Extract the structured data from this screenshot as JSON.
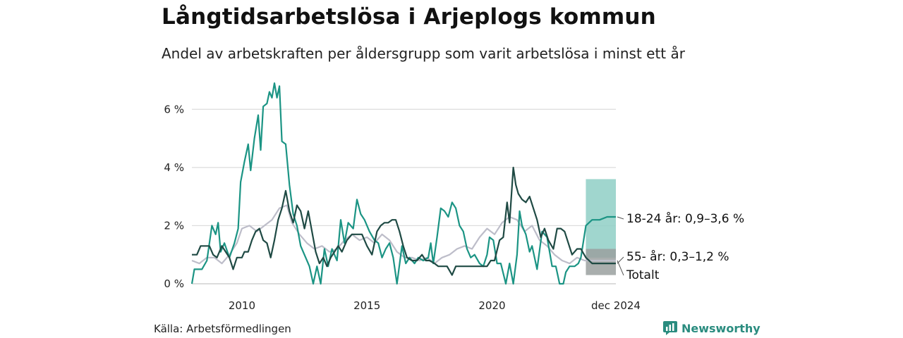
{
  "title": "Långtidsarbetslösa i Arjeplogs kommun",
  "subtitle": "Andel av arbetskraften per åldersgrupp som varit arbetslösa i minst ett år",
  "source": "Källa: Arbetsförmedlingen",
  "brand": "Newsworthy",
  "colors": {
    "young": "#1b9484",
    "old": "#1f4a44",
    "total": "#bdbdc9",
    "young_band": "#8fcfc6",
    "old_band": "#9aa09f",
    "grid": "#dcdcdc"
  },
  "chart_data": {
    "type": "line",
    "xlim": [
      2008.0,
      2024.95
    ],
    "ylim": [
      0,
      7
    ],
    "y_ticks": [
      {
        "value": 0,
        "label": "0 %"
      },
      {
        "value": 2,
        "label": "2 %"
      },
      {
        "value": 4,
        "label": "4 %"
      },
      {
        "value": 6,
        "label": "6 %"
      }
    ],
    "x_ticks": [
      {
        "value": 2010,
        "label": "2010"
      },
      {
        "value": 2015,
        "label": "2015"
      },
      {
        "value": 2020,
        "label": "2020"
      },
      {
        "value": 2024.95,
        "label": "dec 2024"
      }
    ],
    "series": [
      {
        "name": "Totalt",
        "key": "total",
        "label": "Totalt",
        "points": [
          [
            2008.0,
            0.8
          ],
          [
            2008.3,
            0.7
          ],
          [
            2008.6,
            0.9
          ],
          [
            2008.9,
            0.9
          ],
          [
            2009.2,
            0.7
          ],
          [
            2009.5,
            1.0
          ],
          [
            2009.8,
            1.4
          ],
          [
            2010.0,
            1.9
          ],
          [
            2010.3,
            2.0
          ],
          [
            2010.6,
            1.8
          ],
          [
            2010.9,
            2.0
          ],
          [
            2011.2,
            2.2
          ],
          [
            2011.5,
            2.6
          ],
          [
            2011.8,
            2.7
          ],
          [
            2012.0,
            2.1
          ],
          [
            2012.3,
            1.7
          ],
          [
            2012.6,
            1.4
          ],
          [
            2012.9,
            1.2
          ],
          [
            2013.2,
            1.3
          ],
          [
            2013.5,
            1.1
          ],
          [
            2013.8,
            1.2
          ],
          [
            2014.1,
            1.5
          ],
          [
            2014.4,
            1.7
          ],
          [
            2014.7,
            1.5
          ],
          [
            2015.0,
            1.6
          ],
          [
            2015.3,
            1.4
          ],
          [
            2015.6,
            1.7
          ],
          [
            2015.9,
            1.5
          ],
          [
            2016.2,
            1.1
          ],
          [
            2016.5,
            0.9
          ],
          [
            2016.8,
            0.9
          ],
          [
            2017.1,
            0.8
          ],
          [
            2017.4,
            0.9
          ],
          [
            2017.7,
            0.7
          ],
          [
            2018.0,
            0.9
          ],
          [
            2018.3,
            1.0
          ],
          [
            2018.6,
            1.2
          ],
          [
            2018.9,
            1.3
          ],
          [
            2019.2,
            1.2
          ],
          [
            2019.5,
            1.6
          ],
          [
            2019.8,
            1.9
          ],
          [
            2020.1,
            1.7
          ],
          [
            2020.4,
            2.1
          ],
          [
            2020.7,
            2.3
          ],
          [
            2021.0,
            2.2
          ],
          [
            2021.3,
            1.8
          ],
          [
            2021.6,
            2.0
          ],
          [
            2021.9,
            1.5
          ],
          [
            2022.2,
            1.3
          ],
          [
            2022.5,
            1.0
          ],
          [
            2022.8,
            0.8
          ],
          [
            2023.1,
            0.7
          ],
          [
            2023.4,
            0.9
          ],
          [
            2023.7,
            0.8
          ],
          [
            2024.0,
            0.8
          ],
          [
            2024.3,
            0.8
          ],
          [
            2024.6,
            0.8
          ],
          [
            2024.95,
            0.8
          ]
        ]
      },
      {
        "name": "18-24 år",
        "key": "young",
        "label": "18-24 år: 0,9–3,6 %",
        "band": [
          0.9,
          3.6
        ],
        "band_start": 2023.75,
        "points": [
          [
            2008.0,
            0.0
          ],
          [
            2008.1,
            0.5
          ],
          [
            2008.4,
            0.5
          ],
          [
            2008.6,
            0.8
          ],
          [
            2008.8,
            2.0
          ],
          [
            2008.95,
            1.7
          ],
          [
            2009.05,
            2.1
          ],
          [
            2009.15,
            1.1
          ],
          [
            2009.3,
            1.4
          ],
          [
            2009.5,
            0.9
          ],
          [
            2009.7,
            1.4
          ],
          [
            2009.85,
            1.9
          ],
          [
            2009.95,
            3.5
          ],
          [
            2010.1,
            4.2
          ],
          [
            2010.25,
            4.8
          ],
          [
            2010.35,
            3.9
          ],
          [
            2010.5,
            5.0
          ],
          [
            2010.65,
            5.8
          ],
          [
            2010.75,
            4.6
          ],
          [
            2010.85,
            6.1
          ],
          [
            2011.0,
            6.2
          ],
          [
            2011.1,
            6.6
          ],
          [
            2011.2,
            6.4
          ],
          [
            2011.3,
            6.9
          ],
          [
            2011.4,
            6.4
          ],
          [
            2011.5,
            6.8
          ],
          [
            2011.6,
            4.9
          ],
          [
            2011.75,
            4.8
          ],
          [
            2011.9,
            3.4
          ],
          [
            2012.05,
            2.4
          ],
          [
            2012.2,
            2.0
          ],
          [
            2012.35,
            1.3
          ],
          [
            2012.55,
            0.9
          ],
          [
            2012.7,
            0.6
          ],
          [
            2012.85,
            0.0
          ],
          [
            2013.0,
            0.6
          ],
          [
            2013.15,
            0.0
          ],
          [
            2013.3,
            1.2
          ],
          [
            2013.45,
            0.6
          ],
          [
            2013.6,
            1.2
          ],
          [
            2013.8,
            0.8
          ],
          [
            2013.95,
            2.2
          ],
          [
            2014.1,
            1.4
          ],
          [
            2014.25,
            2.1
          ],
          [
            2014.45,
            1.9
          ],
          [
            2014.6,
            2.9
          ],
          [
            2014.75,
            2.4
          ],
          [
            2014.9,
            2.2
          ],
          [
            2015.1,
            1.8
          ],
          [
            2015.3,
            1.5
          ],
          [
            2015.45,
            1.4
          ],
          [
            2015.6,
            0.9
          ],
          [
            2015.75,
            1.2
          ],
          [
            2015.9,
            1.4
          ],
          [
            2016.05,
            0.9
          ],
          [
            2016.2,
            0.0
          ],
          [
            2016.4,
            1.3
          ],
          [
            2016.55,
            0.7
          ],
          [
            2016.7,
            0.9
          ],
          [
            2016.9,
            0.7
          ],
          [
            2017.05,
            0.9
          ],
          [
            2017.25,
            0.8
          ],
          [
            2017.45,
            0.9
          ],
          [
            2017.55,
            1.4
          ],
          [
            2017.65,
            0.7
          ],
          [
            2017.8,
            1.6
          ],
          [
            2017.95,
            2.6
          ],
          [
            2018.1,
            2.5
          ],
          [
            2018.25,
            2.3
          ],
          [
            2018.4,
            2.8
          ],
          [
            2018.55,
            2.6
          ],
          [
            2018.7,
            2.0
          ],
          [
            2018.85,
            1.8
          ],
          [
            2019.0,
            1.2
          ],
          [
            2019.15,
            0.9
          ],
          [
            2019.3,
            1.0
          ],
          [
            2019.5,
            0.7
          ],
          [
            2019.65,
            0.6
          ],
          [
            2019.8,
            1.0
          ],
          [
            2019.9,
            1.6
          ],
          [
            2020.05,
            1.5
          ],
          [
            2020.2,
            0.7
          ],
          [
            2020.35,
            0.7
          ],
          [
            2020.55,
            0.0
          ],
          [
            2020.7,
            0.7
          ],
          [
            2020.85,
            0.0
          ],
          [
            2021.0,
            1.0
          ],
          [
            2021.1,
            2.5
          ],
          [
            2021.2,
            2.0
          ],
          [
            2021.35,
            1.7
          ],
          [
            2021.5,
            1.1
          ],
          [
            2021.6,
            1.3
          ],
          [
            2021.8,
            0.5
          ],
          [
            2022.0,
            1.8
          ],
          [
            2022.2,
            1.6
          ],
          [
            2022.4,
            0.6
          ],
          [
            2022.55,
            0.6
          ],
          [
            2022.7,
            0.0
          ],
          [
            2022.85,
            0.0
          ],
          [
            2022.95,
            0.4
          ],
          [
            2023.1,
            0.6
          ],
          [
            2023.3,
            0.6
          ],
          [
            2023.45,
            0.7
          ],
          [
            2023.55,
            0.9
          ],
          [
            2023.75,
            2.0
          ],
          [
            2024.0,
            2.2
          ],
          [
            2024.3,
            2.2
          ],
          [
            2024.6,
            2.3
          ],
          [
            2024.95,
            2.3
          ]
        ]
      },
      {
        "name": "55- år",
        "key": "old",
        "label": "55- år: 0,3–1,2 %",
        "band": [
          0.3,
          1.2
        ],
        "band_start": 2023.75,
        "points": [
          [
            2008.0,
            1.0
          ],
          [
            2008.2,
            1.0
          ],
          [
            2008.35,
            1.3
          ],
          [
            2008.5,
            1.3
          ],
          [
            2008.7,
            1.3
          ],
          [
            2008.85,
            1.0
          ],
          [
            2009.0,
            0.9
          ],
          [
            2009.2,
            1.3
          ],
          [
            2009.35,
            1.1
          ],
          [
            2009.5,
            0.9
          ],
          [
            2009.65,
            0.5
          ],
          [
            2009.8,
            0.9
          ],
          [
            2010.0,
            0.9
          ],
          [
            2010.1,
            1.1
          ],
          [
            2010.25,
            1.1
          ],
          [
            2010.4,
            1.5
          ],
          [
            2010.55,
            1.8
          ],
          [
            2010.7,
            1.9
          ],
          [
            2010.85,
            1.5
          ],
          [
            2011.0,
            1.4
          ],
          [
            2011.15,
            0.9
          ],
          [
            2011.3,
            1.5
          ],
          [
            2011.45,
            2.2
          ],
          [
            2011.6,
            2.6
          ],
          [
            2011.75,
            3.2
          ],
          [
            2011.9,
            2.5
          ],
          [
            2012.05,
            2.1
          ],
          [
            2012.2,
            2.7
          ],
          [
            2012.35,
            2.5
          ],
          [
            2012.5,
            1.9
          ],
          [
            2012.65,
            2.5
          ],
          [
            2012.8,
            1.8
          ],
          [
            2012.95,
            1.1
          ],
          [
            2013.1,
            0.7
          ],
          [
            2013.25,
            0.9
          ],
          [
            2013.4,
            0.6
          ],
          [
            2013.55,
            0.9
          ],
          [
            2013.7,
            1.1
          ],
          [
            2013.85,
            1.3
          ],
          [
            2014.0,
            1.1
          ],
          [
            2014.2,
            1.5
          ],
          [
            2014.4,
            1.7
          ],
          [
            2014.6,
            1.7
          ],
          [
            2014.8,
            1.7
          ],
          [
            2015.0,
            1.3
          ],
          [
            2015.2,
            1.0
          ],
          [
            2015.4,
            1.8
          ],
          [
            2015.55,
            2.0
          ],
          [
            2015.7,
            2.1
          ],
          [
            2015.85,
            2.1
          ],
          [
            2016.0,
            2.2
          ],
          [
            2016.15,
            2.2
          ],
          [
            2016.3,
            1.8
          ],
          [
            2016.45,
            1.3
          ],
          [
            2016.6,
            0.9
          ],
          [
            2016.8,
            0.8
          ],
          [
            2017.0,
            0.8
          ],
          [
            2017.2,
            1.0
          ],
          [
            2017.35,
            0.8
          ],
          [
            2017.5,
            0.8
          ],
          [
            2017.7,
            0.7
          ],
          [
            2017.85,
            0.6
          ],
          [
            2018.0,
            0.6
          ],
          [
            2018.2,
            0.6
          ],
          [
            2018.4,
            0.3
          ],
          [
            2018.55,
            0.6
          ],
          [
            2018.75,
            0.6
          ],
          [
            2018.9,
            0.6
          ],
          [
            2019.05,
            0.6
          ],
          [
            2019.2,
            0.6
          ],
          [
            2019.35,
            0.6
          ],
          [
            2019.5,
            0.6
          ],
          [
            2019.65,
            0.6
          ],
          [
            2019.8,
            0.6
          ],
          [
            2019.95,
            0.8
          ],
          [
            2020.1,
            0.8
          ],
          [
            2020.3,
            1.5
          ],
          [
            2020.45,
            1.6
          ],
          [
            2020.6,
            2.8
          ],
          [
            2020.7,
            2.1
          ],
          [
            2020.85,
            4.0
          ],
          [
            2020.95,
            3.4
          ],
          [
            2021.05,
            3.1
          ],
          [
            2021.2,
            2.9
          ],
          [
            2021.35,
            2.8
          ],
          [
            2021.5,
            3.0
          ],
          [
            2021.65,
            2.6
          ],
          [
            2021.8,
            2.2
          ],
          [
            2021.95,
            1.6
          ],
          [
            2022.1,
            1.9
          ],
          [
            2022.25,
            1.5
          ],
          [
            2022.45,
            1.2
          ],
          [
            2022.6,
            1.9
          ],
          [
            2022.75,
            1.9
          ],
          [
            2022.9,
            1.8
          ],
          [
            2023.05,
            1.4
          ],
          [
            2023.2,
            1.0
          ],
          [
            2023.4,
            1.2
          ],
          [
            2023.55,
            1.2
          ],
          [
            2023.75,
            0.9
          ],
          [
            2024.0,
            0.7
          ],
          [
            2024.3,
            0.7
          ],
          [
            2024.6,
            0.7
          ],
          [
            2024.95,
            0.7
          ]
        ]
      }
    ]
  }
}
